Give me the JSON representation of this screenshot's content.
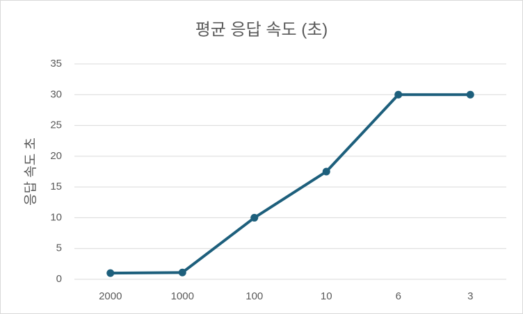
{
  "chart_data": {
    "type": "line",
    "title": "평균 응답 속도 (초)",
    "y_label": "응답 속도 초",
    "categories": [
      "2000",
      "1000",
      "100",
      "10",
      "6",
      "3"
    ],
    "values": [
      1,
      1.1,
      10,
      17.5,
      30,
      30
    ],
    "color": "#1d5f7c",
    "ylim": [
      0,
      35
    ],
    "yticks": [
      0,
      5,
      10,
      15,
      20,
      25,
      30,
      35
    ],
    "grid": true
  }
}
